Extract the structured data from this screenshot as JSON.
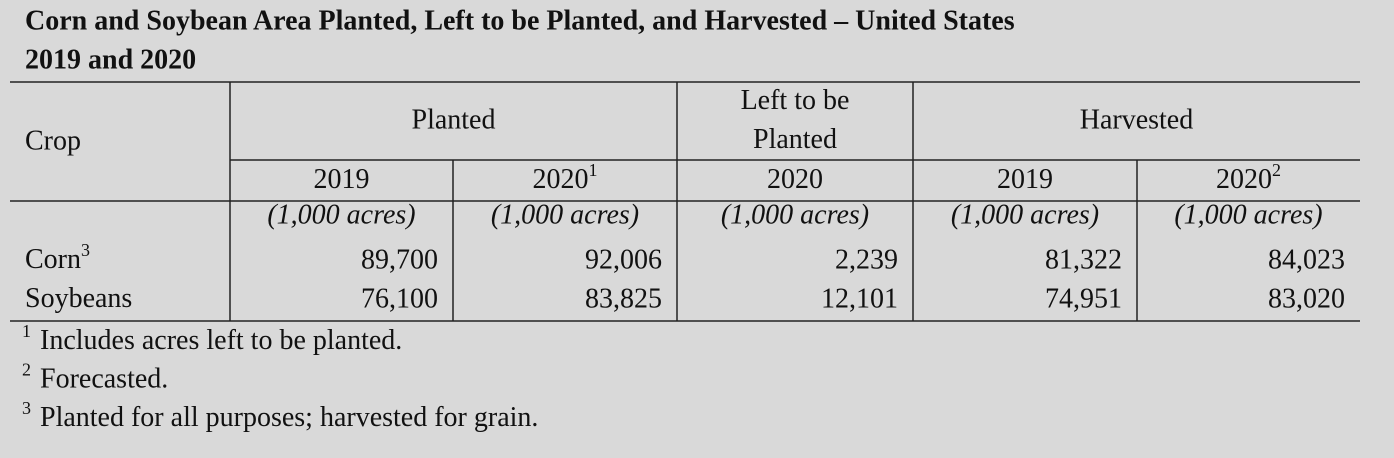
{
  "title": [
    "Corn and Soybean Area Planted, Left to be Planted, and Harvested – United States",
    "2019 and 2020"
  ],
  "table": {
    "header": {
      "crop": "Crop",
      "groups": [
        [
          "Planted"
        ],
        [
          "Left to be",
          "Planted"
        ],
        [
          "Harvested"
        ]
      ],
      "years": [
        {
          "text": "2019"
        },
        {
          "text": "2020",
          "note": "1"
        },
        {
          "text": "2020"
        },
        {
          "text": "2019"
        },
        {
          "text": "2020",
          "note": "2"
        }
      ],
      "units": [
        "(1,000 acres)",
        "(1,000 acres)",
        "(1,000 acres)",
        "(1,000 acres)",
        "(1,000 acres)"
      ]
    },
    "rows": [
      {
        "crop": "Corn",
        "note": "3",
        "values": [
          "89,700",
          "92,006",
          "2,239",
          "81,322",
          "84,023"
        ]
      },
      {
        "crop": "Soybeans",
        "values": [
          "76,100",
          "83,825",
          "12,101",
          "74,951",
          "83,020"
        ]
      }
    ]
  },
  "footnotes": [
    {
      "marker": "1",
      "text": "Includes acres left to be planted."
    },
    {
      "marker": "2",
      "text": "Forecasted."
    },
    {
      "marker": "3",
      "text": "Planted for all purposes; harvested for grain."
    }
  ]
}
